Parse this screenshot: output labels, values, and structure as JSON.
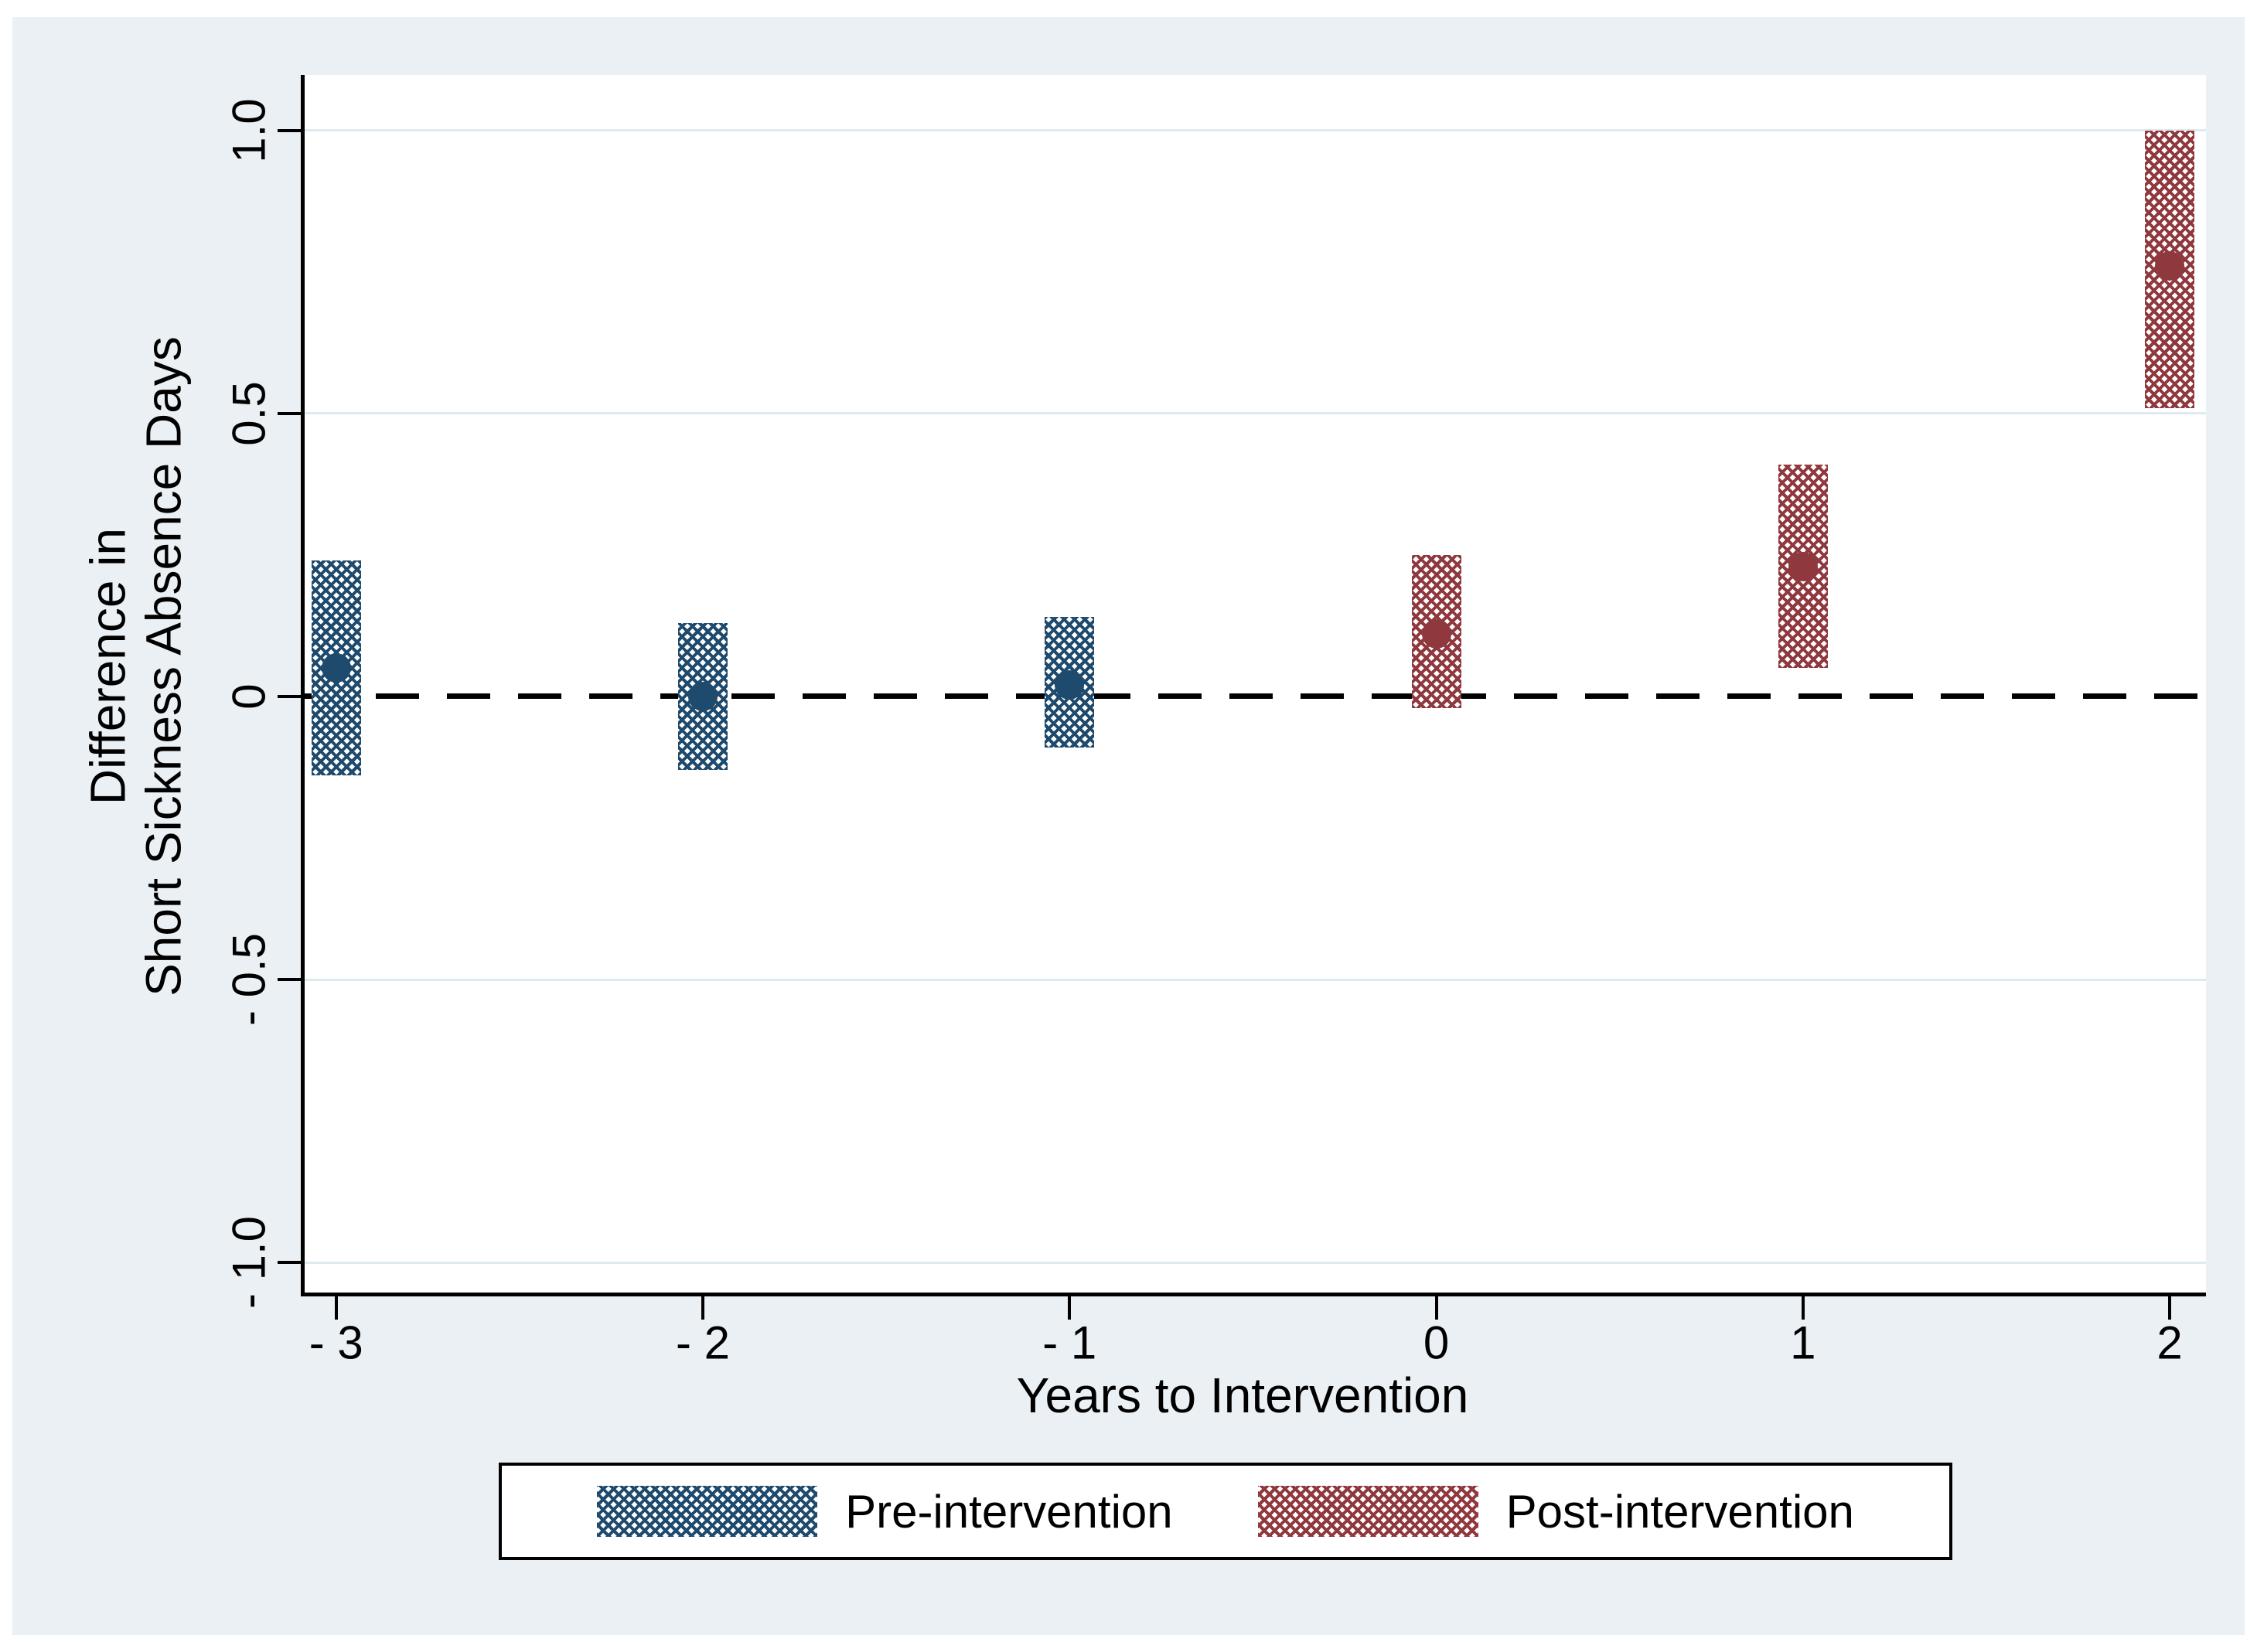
{
  "figure": {
    "background_color": "#eaf0f4",
    "plot_background": "#ffffff",
    "colors": {
      "pre": "#1e4a6d",
      "post": "#8f383e",
      "gridline": "#e0eaee",
      "axis": "#000000",
      "zero_line": "#000000"
    }
  },
  "chart_data": {
    "type": "scatter",
    "subtype": "event-study point estimates with hatched confidence interval bars",
    "xlabel": "Years to Intervention",
    "ylabel": "Difference in Short Sickness Absence Days",
    "ylabel_lines": [
      "Difference in",
      "Short Sickness Absence Days"
    ],
    "xlim": [
      -3.086,
      2.099
    ],
    "ylim": [
      -1.053,
      1.098
    ],
    "x_ticks": [
      -3,
      -2,
      -1,
      0,
      1,
      2
    ],
    "x_tick_labels": [
      "- 3",
      "- 2",
      "- 1",
      "0",
      "1",
      "2"
    ],
    "y_ticks": [
      1.0,
      0.5,
      0,
      -0.5,
      -1.0
    ],
    "y_tick_labels": [
      "1.0",
      "0.5",
      "0",
      "- 0.5",
      "- 1.0"
    ],
    "grid": true,
    "zero_reference_line": 0,
    "legend_position": "bottom",
    "series": [
      {
        "name": "Pre-intervention",
        "color": "#1e4a6d",
        "points": [
          {
            "x": -3,
            "est": 0.05,
            "ci_low": -0.14,
            "ci_high": 0.24
          },
          {
            "x": -2,
            "est": 0.0,
            "ci_low": -0.13,
            "ci_high": 0.13
          },
          {
            "x": -1,
            "est": 0.02,
            "ci_low": -0.09,
            "ci_high": 0.14
          }
        ]
      },
      {
        "name": "Post-intervention",
        "color": "#8f383e",
        "points": [
          {
            "x": 0,
            "est": 0.11,
            "ci_low": -0.02,
            "ci_high": 0.25
          },
          {
            "x": 1,
            "est": 0.23,
            "ci_low": 0.05,
            "ci_high": 0.41
          },
          {
            "x": 2,
            "est": 0.76,
            "ci_low": 0.51,
            "ci_high": 1.0
          }
        ]
      }
    ]
  }
}
